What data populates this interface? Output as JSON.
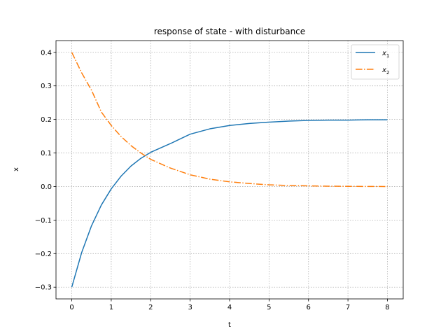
{
  "chart_data": {
    "type": "line",
    "title": "response of state - with disturbance",
    "xlabel": "t",
    "ylabel": "x",
    "xlim": [
      -0.4,
      8.4
    ],
    "ylim": [
      -0.335,
      0.435
    ],
    "xticks": [
      0,
      1,
      2,
      3,
      4,
      5,
      6,
      7,
      8
    ],
    "xtick_labels": [
      "0",
      "1",
      "2",
      "3",
      "4",
      "5",
      "6",
      "7",
      "8"
    ],
    "yticks": [
      -0.3,
      -0.2,
      -0.1,
      0.0,
      0.1,
      0.2,
      0.3,
      0.4
    ],
    "ytick_labels": [
      "−0.3",
      "−0.2",
      "−0.1",
      "0.0",
      "0.1",
      "0.2",
      "0.3",
      "0.4"
    ],
    "grid": true,
    "legend_position": "top-right",
    "series": [
      {
        "name": "x",
        "subscript": "1",
        "color": "#1f77b4",
        "style": "solid",
        "x": [
          0,
          0.25,
          0.5,
          0.75,
          1,
          1.25,
          1.5,
          1.75,
          2,
          2.5,
          3,
          3.5,
          4,
          4.5,
          5,
          5.5,
          6,
          6.5,
          7,
          7.5,
          8
        ],
        "y": [
          -0.3,
          -0.197,
          -0.117,
          -0.055,
          -0.007,
          0.031,
          0.061,
          0.084,
          0.102,
          0.128,
          0.156,
          0.172,
          0.182,
          0.188,
          0.192,
          0.195,
          0.197,
          0.198,
          0.198,
          0.199,
          0.199
        ]
      },
      {
        "name": "x",
        "subscript": "2",
        "color": "#ff7f0e",
        "style": "dashdot",
        "x": [
          0,
          0.25,
          0.5,
          0.75,
          1,
          1.25,
          1.5,
          1.75,
          2,
          2.5,
          3,
          3.5,
          4,
          4.5,
          5,
          5.5,
          6,
          6.5,
          7,
          7.5,
          8
        ],
        "y": [
          0.4,
          0.339,
          0.287,
          0.222,
          0.182,
          0.149,
          0.122,
          0.1,
          0.081,
          0.055,
          0.035,
          0.022,
          0.014,
          0.009,
          0.005,
          0.003,
          0.002,
          0.001,
          0.0005,
          0.0002,
          0.0
        ]
      }
    ]
  }
}
